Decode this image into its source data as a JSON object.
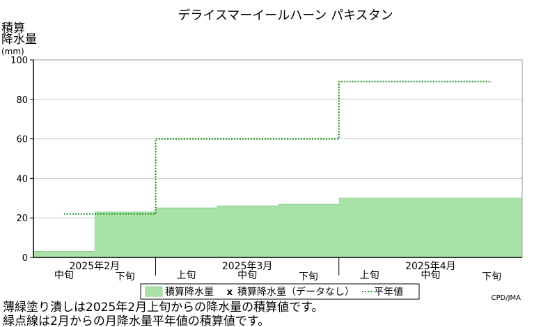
{
  "chart_data": {
    "type": "area",
    "title": "デライスマーイールハーン パキスタン",
    "ylabel_lines": [
      "積算",
      "降水量",
      "(mm)"
    ],
    "y_ticks": [
      0,
      20,
      40,
      60,
      80,
      100
    ],
    "ylim": [
      0,
      100
    ],
    "grid": true,
    "periods": [
      {
        "month_label": "2025年2月",
        "dekads": [
          "中旬",
          "下旬"
        ]
      },
      {
        "month_label": "2025年3月",
        "dekads": [
          "上旬",
          "中旬",
          "下旬"
        ]
      },
      {
        "month_label": "2025年4月",
        "dekads": [
          "上旬",
          "中旬",
          "下旬"
        ]
      }
    ],
    "series": [
      {
        "name": "積算降水量",
        "kind": "area",
        "color": "#a9e2a9",
        "values": [
          3,
          3,
          23,
          23,
          25,
          25,
          26,
          26,
          27,
          27,
          30,
          30,
          30,
          30,
          30,
          30
        ]
      },
      {
        "name": "積算降水量（データなし）",
        "kind": "marker",
        "values": []
      },
      {
        "name": "平年値",
        "kind": "dotted-step",
        "color": "#118811",
        "monthly_values": [
          22,
          60,
          89
        ]
      }
    ],
    "legend_placement": "bottom-center",
    "credit": "CPD/JMA"
  },
  "notes": [
    "薄緑塗り潰しは2025年2月上旬からの降水量の積算値です。",
    "緑点線は2月からの月降水量平年値の積算値です。"
  ]
}
